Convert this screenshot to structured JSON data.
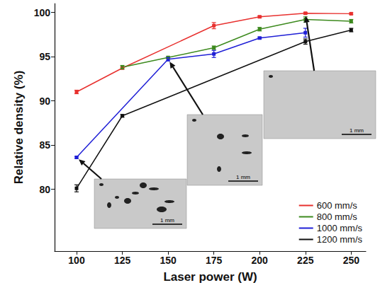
{
  "chart_data": {
    "type": "line",
    "x_label": "Laser power (W)",
    "y_label": "Relative density (%)",
    "xlim": [
      88,
      258
    ],
    "xticks": [
      100,
      125,
      150,
      175,
      200,
      225,
      250
    ],
    "ylim": [
      73,
      101
    ],
    "yticks": [
      80,
      85,
      90,
      95,
      100
    ],
    "grid": false,
    "legend": "lower right",
    "marker": "square",
    "series": [
      {
        "name": "600 mm/s",
        "color": "#e8312f",
        "x": [
          100,
          125,
          175,
          200,
          225,
          250
        ],
        "values": [
          91.0,
          93.7,
          98.5,
          99.5,
          99.9,
          99.85
        ],
        "errors": [
          0.2,
          0.1,
          0.35,
          0.1,
          0.1,
          0.1
        ]
      },
      {
        "name": "800 mm/s",
        "color": "#3d8a1e",
        "x": [
          125,
          150,
          175,
          200,
          225,
          250
        ],
        "values": [
          93.8,
          94.9,
          96.0,
          98.1,
          99.2,
          99.0
        ],
        "errors": [
          0.2,
          0.1,
          0.2,
          0.2,
          0.3,
          0.2
        ]
      },
      {
        "name": "1000 mm/s",
        "color": "#1f1fd6",
        "x": [
          100,
          150,
          175,
          200,
          225
        ],
        "values": [
          83.6,
          94.7,
          95.3,
          97.1,
          97.7
        ],
        "errors": [
          0.1,
          0.2,
          0.4,
          0.1,
          0.5
        ]
      },
      {
        "name": "1200 mm/s",
        "color": "#111111",
        "x": [
          100,
          125,
          225,
          250
        ],
        "values": [
          80.1,
          88.3,
          96.7,
          98.0
        ],
        "errors": [
          0.4,
          0.15,
          0.3,
          0.2
        ]
      }
    ],
    "annotations": [
      {
        "text": "1 mm",
        "series": "1000 mm/s",
        "x": 100
      },
      {
        "text": "1 mm",
        "series": "1000 mm/s",
        "x": 150
      },
      {
        "text": "1 mm",
        "series": "600 mm/s",
        "x": 225
      }
    ]
  }
}
